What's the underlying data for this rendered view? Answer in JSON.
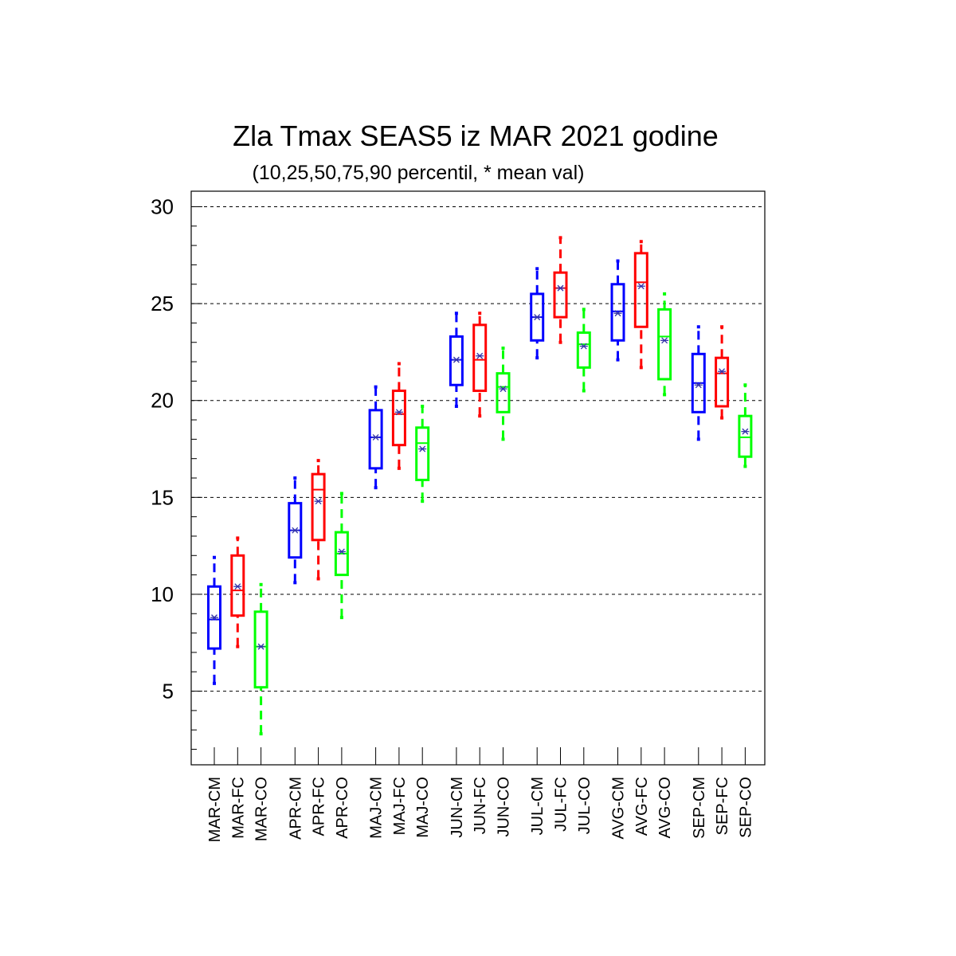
{
  "chart_data": {
    "type": "box",
    "title": "Zla Tmax SEAS5 iz MAR 2021 godine",
    "subtitle": "(10,25,50,75,90 percentil, * mean val)",
    "xlabel": "",
    "ylabel": "",
    "ylim": [
      1.2,
      30.8
    ],
    "yticks": [
      5,
      10,
      15,
      20,
      25,
      30
    ],
    "yminor_step": 1,
    "grid": "horizontal-dashed",
    "series_colors": {
      "CM": "#0000ff",
      "FC": "#ff0000",
      "CO": "#00ff00"
    },
    "mean_marker_color": "#3333aa",
    "categories": [
      "MAR-CM",
      "MAR-FC",
      "MAR-CO",
      "APR-CM",
      "APR-FC",
      "APR-CO",
      "MAJ-CM",
      "MAJ-FC",
      "MAJ-CO",
      "JUN-CM",
      "JUN-FC",
      "JUN-CO",
      "JUL-CM",
      "JUL-FC",
      "JUL-CO",
      "AVG-CM",
      "AVG-FC",
      "AVG-CO",
      "SEP-CM",
      "SEP-FC",
      "SEP-CO"
    ],
    "boxes": [
      {
        "p10": 5.4,
        "p25": 7.2,
        "p50": 8.7,
        "p75": 10.4,
        "p90": 11.9,
        "mean": 8.8
      },
      {
        "p10": 7.3,
        "p25": 8.9,
        "p50": 10.2,
        "p75": 12.0,
        "p90": 12.9,
        "mean": 10.4
      },
      {
        "p10": 2.8,
        "p25": 5.2,
        "p50": 7.3,
        "p75": 9.1,
        "p90": 10.5,
        "mean": 7.3
      },
      {
        "p10": 10.6,
        "p25": 11.9,
        "p50": 13.3,
        "p75": 14.7,
        "p90": 16.0,
        "mean": 13.3
      },
      {
        "p10": 10.8,
        "p25": 12.8,
        "p50": 15.4,
        "p75": 16.2,
        "p90": 16.9,
        "mean": 14.8
      },
      {
        "p10": 8.8,
        "p25": 11.0,
        "p50": 12.1,
        "p75": 13.2,
        "p90": 15.2,
        "mean": 12.2
      },
      {
        "p10": 15.5,
        "p25": 16.5,
        "p50": 18.1,
        "p75": 19.5,
        "p90": 20.7,
        "mean": 18.1
      },
      {
        "p10": 16.5,
        "p25": 17.7,
        "p50": 19.3,
        "p75": 20.5,
        "p90": 21.9,
        "mean": 19.4
      },
      {
        "p10": 14.8,
        "p25": 15.9,
        "p50": 17.8,
        "p75": 18.6,
        "p90": 19.7,
        "mean": 17.5
      },
      {
        "p10": 19.7,
        "p25": 20.8,
        "p50": 22.1,
        "p75": 23.3,
        "p90": 24.5,
        "mean": 22.1
      },
      {
        "p10": 19.2,
        "p25": 20.5,
        "p50": 22.1,
        "p75": 23.9,
        "p90": 24.5,
        "mean": 22.3
      },
      {
        "p10": 18.0,
        "p25": 19.4,
        "p50": 20.7,
        "p75": 21.4,
        "p90": 22.7,
        "mean": 20.6
      },
      {
        "p10": 22.2,
        "p25": 23.1,
        "p50": 24.3,
        "p75": 25.5,
        "p90": 26.8,
        "mean": 24.3
      },
      {
        "p10": 23.0,
        "p25": 24.3,
        "p50": 25.8,
        "p75": 26.6,
        "p90": 28.4,
        "mean": 25.8
      },
      {
        "p10": 20.5,
        "p25": 21.7,
        "p50": 22.9,
        "p75": 23.5,
        "p90": 24.7,
        "mean": 22.8
      },
      {
        "p10": 22.1,
        "p25": 23.1,
        "p50": 24.6,
        "p75": 26.0,
        "p90": 27.2,
        "mean": 24.5
      },
      {
        "p10": 21.7,
        "p25": 23.8,
        "p50": 26.1,
        "p75": 27.6,
        "p90": 28.2,
        "mean": 25.9
      },
      {
        "p10": 20.3,
        "p25": 21.1,
        "p50": 23.3,
        "p75": 24.7,
        "p90": 25.5,
        "mean": 23.1
      },
      {
        "p10": 18.0,
        "p25": 19.4,
        "p50": 20.9,
        "p75": 22.4,
        "p90": 23.8,
        "mean": 20.8
      },
      {
        "p10": 19.1,
        "p25": 19.7,
        "p50": 21.4,
        "p75": 22.2,
        "p90": 23.8,
        "mean": 21.5
      },
      {
        "p10": 16.6,
        "p25": 17.1,
        "p50": 18.1,
        "p75": 19.2,
        "p90": 20.8,
        "mean": 18.4
      }
    ]
  }
}
